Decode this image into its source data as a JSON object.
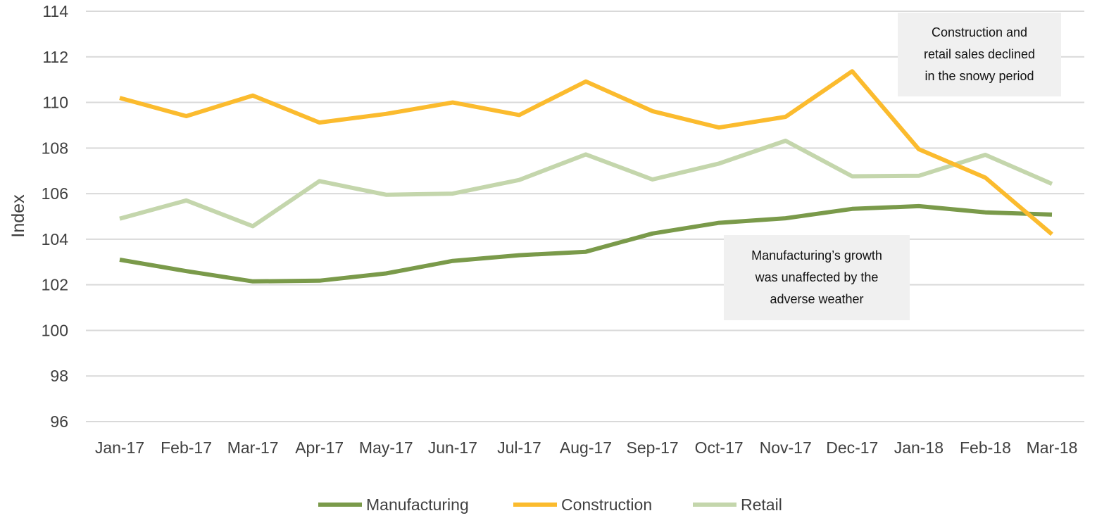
{
  "chart_data": {
    "type": "line",
    "ylabel": "Index",
    "xlabel": "",
    "title": "",
    "ylim": [
      96,
      114
    ],
    "yticks": [
      "96",
      "98",
      "100",
      "102",
      "104",
      "106",
      "108",
      "110",
      "112",
      "114"
    ],
    "categories": [
      "Jan-17",
      "Feb-17",
      "Mar-17",
      "Apr-17",
      "May-17",
      "Jun-17",
      "Jul-17",
      "Aug-17",
      "Sep-17",
      "Oct-17",
      "Nov-17",
      "Dec-17",
      "Jan-18",
      "Feb-18",
      "Mar-18"
    ],
    "grid": "horizontal",
    "legend_position": "bottom",
    "series": [
      {
        "name": "Manufacturing",
        "color": "#7a9a4a",
        "values": [
          103.1,
          102.6,
          102.15,
          102.18,
          102.5,
          103.05,
          103.3,
          103.45,
          104.25,
          104.72,
          104.92,
          105.33,
          105.45,
          105.18,
          105.08
        ]
      },
      {
        "name": "Construction",
        "color": "#fbbb2e",
        "values": [
          110.2,
          109.4,
          110.3,
          109.12,
          109.5,
          110.0,
          109.45,
          110.92,
          109.62,
          108.9,
          109.37,
          111.37,
          107.95,
          106.7,
          104.22
        ]
      },
      {
        "name": "Retail",
        "color": "#c4d6ac",
        "values": [
          104.9,
          105.7,
          104.57,
          106.55,
          105.95,
          106.0,
          106.6,
          107.72,
          106.62,
          107.32,
          108.32,
          106.76,
          106.78,
          107.7,
          106.43
        ]
      }
    ],
    "annotations": [
      {
        "id": "retail_construction",
        "text": "Construction and\nretail sales declined\nin the snowy period"
      },
      {
        "id": "manufacturing",
        "text": "Manufacturing’s growth\nwas unaffected by the\nadverse weather"
      }
    ]
  }
}
